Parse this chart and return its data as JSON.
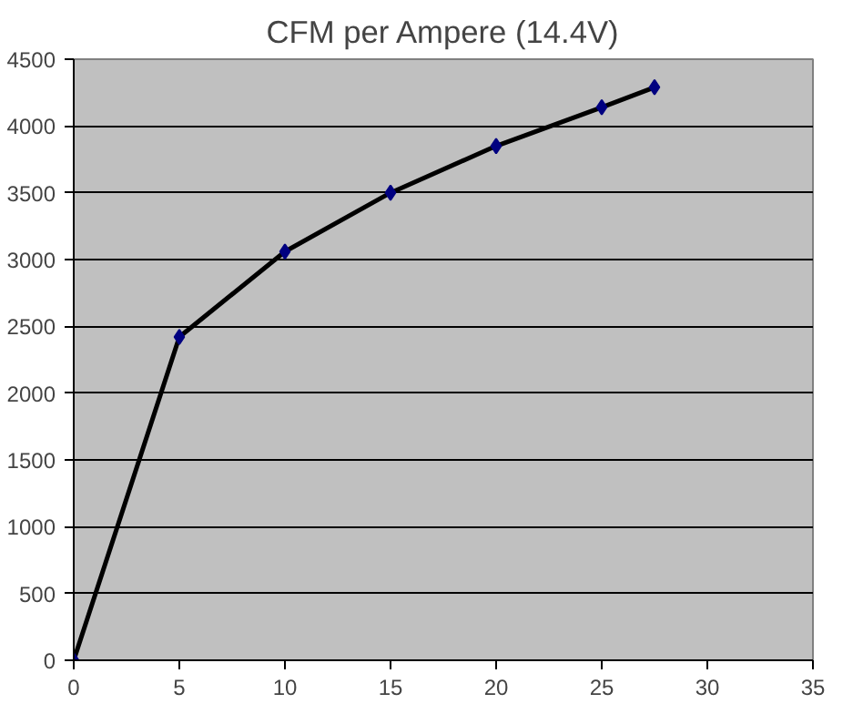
{
  "chart_data": {
    "type": "line",
    "title": "CFM per Ampere (14.4V)",
    "x": [
      0,
      5,
      10,
      15,
      20,
      25,
      27.5
    ],
    "series": [
      {
        "color": "#000000",
        "values": [
          0,
          2420,
          3060,
          3500,
          3850,
          4140,
          4290
        ]
      }
    ],
    "xlim": [
      0,
      35
    ],
    "xticks": [
      0,
      5,
      10,
      15,
      20,
      25,
      30,
      35
    ],
    "ylim": [
      0,
      4500
    ],
    "yticks": [
      0,
      500,
      1000,
      1500,
      2000,
      2500,
      3000,
      3500,
      4000,
      4500
    ],
    "grid": "y",
    "marker": "diamond",
    "line_style": "solid"
  }
}
